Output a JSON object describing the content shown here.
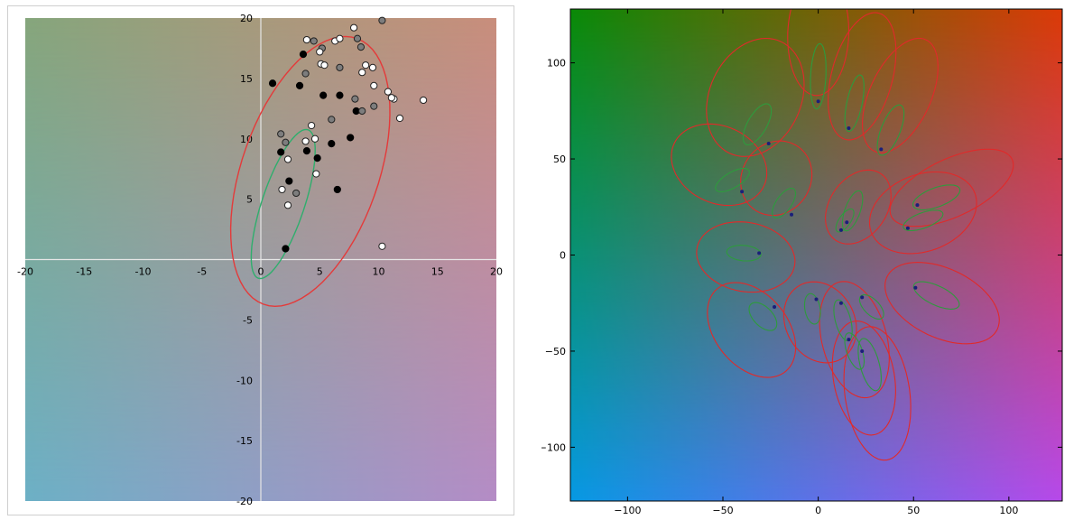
{
  "charts": [
    {
      "type": "scatter",
      "xlim": [
        -20,
        20
      ],
      "ylim": [
        -20,
        20
      ],
      "ticks": [
        -20,
        -15,
        -10,
        -5,
        0,
        5,
        10,
        15,
        20
      ],
      "tick_labels": [
        "-20",
        "-15",
        "-10",
        "-5",
        "0",
        "5",
        "10",
        "15",
        "20"
      ],
      "background_corners": {
        "top_left": "#86a67c",
        "top_right": "#c98e7c",
        "bottom_left": "#6cb0c6",
        "bottom_right": "#b48cc6"
      },
      "grid": false,
      "axis_lines_at_origin": true,
      "points": {
        "black": [
          [
            1.0,
            14.6
          ],
          [
            3.3,
            14.4
          ],
          [
            3.6,
            17.0
          ],
          [
            5.3,
            13.6
          ],
          [
            6.7,
            13.6
          ],
          [
            8.1,
            12.3
          ],
          [
            7.6,
            10.1
          ],
          [
            6.0,
            9.6
          ],
          [
            4.8,
            8.4
          ],
          [
            3.9,
            9.0
          ],
          [
            1.7,
            8.9
          ],
          [
            2.4,
            6.5
          ],
          [
            6.5,
            5.8
          ],
          [
            2.1,
            0.9
          ]
        ],
        "gray": [
          [
            4.5,
            18.1
          ],
          [
            5.2,
            17.5
          ],
          [
            8.2,
            18.3
          ],
          [
            8.5,
            17.6
          ],
          [
            6.7,
            15.9
          ],
          [
            3.8,
            15.4
          ],
          [
            8.0,
            13.3
          ],
          [
            9.6,
            12.7
          ],
          [
            6.0,
            11.6
          ],
          [
            8.6,
            12.3
          ],
          [
            1.7,
            10.4
          ],
          [
            2.1,
            9.7
          ],
          [
            3.0,
            5.5
          ],
          [
            10.3,
            19.8
          ]
        ],
        "white": [
          [
            3.9,
            18.2
          ],
          [
            5.0,
            17.2
          ],
          [
            6.3,
            18.1
          ],
          [
            6.7,
            18.3
          ],
          [
            7.9,
            19.2
          ],
          [
            5.1,
            16.2
          ],
          [
            5.4,
            16.1
          ],
          [
            8.9,
            16.1
          ],
          [
            9.5,
            15.9
          ],
          [
            8.6,
            15.5
          ],
          [
            9.6,
            14.4
          ],
          [
            10.8,
            13.9
          ],
          [
            11.3,
            13.3
          ],
          [
            11.1,
            13.4
          ],
          [
            13.8,
            13.2
          ],
          [
            11.8,
            11.7
          ],
          [
            4.3,
            11.1
          ],
          [
            4.6,
            10.0
          ],
          [
            3.8,
            9.8
          ],
          [
            2.3,
            8.3
          ],
          [
            1.8,
            5.8
          ],
          [
            4.7,
            7.1
          ],
          [
            2.3,
            4.5
          ],
          [
            10.3,
            1.1
          ]
        ]
      },
      "ellipses": [
        {
          "color": "#e43a3a",
          "cx": 4.2,
          "cy": 7.3,
          "rx": 11.7,
          "ry": 5.8,
          "angle": 70
        },
        {
          "color": "#2fae6d",
          "cx": 1.9,
          "cy": 4.6,
          "rx": 6.5,
          "ry": 1.8,
          "angle": 71
        }
      ]
    },
    {
      "type": "scatter",
      "xlim": [
        -130,
        128
      ],
      "ylim": [
        -128,
        128
      ],
      "xticks": [
        -100,
        -50,
        0,
        50,
        100
      ],
      "xtick_labels": [
        "−100",
        "−50",
        "0",
        "50",
        "100"
      ],
      "yticks": [
        -100,
        -50,
        0,
        50,
        100
      ],
      "ytick_labels": [
        "−100",
        "−50",
        "0",
        "50",
        "100"
      ],
      "background_corners": {
        "top_left": "#0a8a07",
        "top_right": "#dc3a07",
        "bottom_left": "#0699e4",
        "bottom_right": "#b649ea"
      },
      "grid": false,
      "points": [
        [
          0,
          80
        ],
        [
          16,
          66
        ],
        [
          33,
          55
        ],
        [
          -26,
          58
        ],
        [
          -40,
          33
        ],
        [
          -14,
          21
        ],
        [
          15,
          17
        ],
        [
          12,
          13
        ],
        [
          47,
          14
        ],
        [
          52,
          26
        ],
        [
          -31,
          1
        ],
        [
          -23,
          -27
        ],
        [
          -1,
          -23
        ],
        [
          23,
          -22
        ],
        [
          12,
          -25
        ],
        [
          51,
          -17
        ],
        [
          16,
          -44
        ],
        [
          23,
          -50
        ]
      ],
      "inner_ellipses": [
        {
          "cx": 0,
          "cy": 93,
          "rx": 17,
          "ry": 4,
          "angle": 87
        },
        {
          "cx": 19,
          "cy": 79,
          "rx": 15,
          "ry": 4,
          "angle": 78
        },
        {
          "cx": 38,
          "cy": 65,
          "rx": 14,
          "ry": 5,
          "angle": 68
        },
        {
          "cx": -32,
          "cy": 68,
          "rx": 12,
          "ry": 5,
          "angle": 60
        },
        {
          "cx": -45,
          "cy": 39,
          "rx": 10,
          "ry": 4,
          "angle": 30
        },
        {
          "cx": -18,
          "cy": 27,
          "rx": 9,
          "ry": 4,
          "angle": 55
        },
        {
          "cx": 18,
          "cy": 23,
          "rx": 11,
          "ry": 4,
          "angle": 70
        },
        {
          "cx": 14,
          "cy": 18,
          "rx": 7,
          "ry": 3,
          "angle": 55
        },
        {
          "cx": 55,
          "cy": 18,
          "rx": 11,
          "ry": 4,
          "angle": 20
        },
        {
          "cx": 62,
          "cy": 30,
          "rx": 13,
          "ry": 5,
          "angle": 20
        },
        {
          "cx": -39,
          "cy": 1,
          "rx": 9,
          "ry": 4,
          "angle": -5
        },
        {
          "cx": -29,
          "cy": -32,
          "rx": 9,
          "ry": 5,
          "angle": -45
        },
        {
          "cx": -3,
          "cy": -28,
          "rx": 8,
          "ry": 4,
          "angle": -80
        },
        {
          "cx": 28,
          "cy": -27,
          "rx": 8,
          "ry": 4,
          "angle": -45
        },
        {
          "cx": 13,
          "cy": -34,
          "rx": 11,
          "ry": 4,
          "angle": -75
        },
        {
          "cx": 62,
          "cy": -21,
          "rx": 13,
          "ry": 5,
          "angle": -25
        },
        {
          "cx": 19,
          "cy": -50,
          "rx": 10,
          "ry": 4,
          "angle": -70
        },
        {
          "cx": 27,
          "cy": -57,
          "rx": 14,
          "ry": 5,
          "angle": -75
        }
      ],
      "outer_ellipses": [
        {
          "cx": 0,
          "cy": 115,
          "rx": 32,
          "ry": 16,
          "angle": 88
        },
        {
          "cx": 23,
          "cy": 93,
          "rx": 34,
          "ry": 16,
          "angle": 75
        },
        {
          "cx": 43,
          "cy": 83,
          "rx": 32,
          "ry": 16,
          "angle": 65
        },
        {
          "cx": -33,
          "cy": 82,
          "rx": 32,
          "ry": 24,
          "angle": 65
        },
        {
          "cx": -52,
          "cy": 47,
          "rx": 26,
          "ry": 20,
          "angle": -25
        },
        {
          "cx": -22,
          "cy": 40,
          "rx": 20,
          "ry": 18,
          "angle": 55
        },
        {
          "cx": 21,
          "cy": 25,
          "rx": 21,
          "ry": 15,
          "angle": 55
        },
        {
          "cx": 55,
          "cy": 22,
          "rx": 29,
          "ry": 20,
          "angle": 20
        },
        {
          "cx": 70,
          "cy": 35,
          "rx": 35,
          "ry": 15,
          "angle": 25
        },
        {
          "cx": -38,
          "cy": -1,
          "rx": 26,
          "ry": 18,
          "angle": -10
        },
        {
          "cx": -35,
          "cy": -39,
          "rx": 28,
          "ry": 19,
          "angle": -50
        },
        {
          "cx": 1,
          "cy": -35,
          "rx": 22,
          "ry": 18,
          "angle": -60
        },
        {
          "cx": 19,
          "cy": -44,
          "rx": 31,
          "ry": 17,
          "angle": -75
        },
        {
          "cx": 65,
          "cy": -25,
          "rx": 32,
          "ry": 18,
          "angle": -25
        },
        {
          "cx": 24,
          "cy": -64,
          "rx": 30,
          "ry": 16,
          "angle": -80
        },
        {
          "cx": 31,
          "cy": -72,
          "rx": 35,
          "ry": 17,
          "angle": -82
        }
      ],
      "inner_color": "#2e9b3d",
      "outer_color": "#e02a2a",
      "point_color": "#1a1f7a"
    }
  ]
}
